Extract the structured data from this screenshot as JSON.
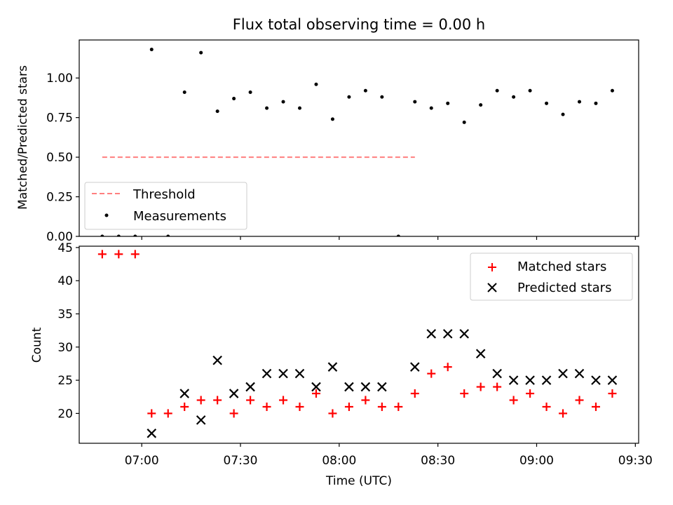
{
  "title": "Flux total observing time = 0.00 h",
  "colors": {
    "threshold": "#ff7f7f",
    "measurements": "#000000",
    "matched": "#ff0000",
    "predicted": "#000000"
  },
  "chart_data": [
    {
      "type": "scatter",
      "title": "Flux total observing time = 0.00 h",
      "ylabel": "Matched/Predicted stars",
      "xlabel": "",
      "ylim": [
        0,
        1.24
      ],
      "yticks": [
        0.0,
        0.25,
        0.5,
        0.75,
        1.0
      ],
      "ytick_labels": [
        "0.00",
        "0.25",
        "0.50",
        "0.75",
        "1.00"
      ],
      "legend_position": "lower-left",
      "series": [
        {
          "name": "Threshold",
          "style": "dashed-line",
          "x": [
            "06:48",
            "08:23"
          ],
          "y": [
            0.5,
            0.5
          ]
        },
        {
          "name": "Measurements",
          "style": "dot",
          "x": [
            "06:48",
            "06:53",
            "06:58",
            "07:03",
            "07:08",
            "07:13",
            "07:18",
            "07:23",
            "07:28",
            "07:33",
            "07:38",
            "07:43",
            "07:48",
            "07:53",
            "07:58",
            "08:03",
            "08:08",
            "08:13",
            "08:18",
            "08:23",
            "08:28",
            "08:33",
            "08:38",
            "08:43",
            "08:48",
            "08:53",
            "08:58",
            "09:03",
            "09:08",
            "09:13",
            "09:18",
            "09:23"
          ],
          "y": [
            0.0,
            0.0,
            0.0,
            1.18,
            0.0,
            0.91,
            1.16,
            0.79,
            0.87,
            0.91,
            0.81,
            0.85,
            0.81,
            0.96,
            0.74,
            0.88,
            0.92,
            0.88,
            0.0,
            0.85,
            0.81,
            0.84,
            0.72,
            0.83,
            0.92,
            0.88,
            0.92,
            0.84,
            0.77,
            0.85,
            0.84,
            0.92
          ]
        }
      ]
    },
    {
      "type": "scatter",
      "title": "",
      "ylabel": "Count",
      "xlabel": "Time (UTC)",
      "ylim": [
        15.5,
        45.2
      ],
      "yticks": [
        20,
        25,
        30,
        35,
        40,
        45
      ],
      "ytick_labels": [
        "20",
        "25",
        "30",
        "35",
        "40",
        "45"
      ],
      "xticks": [
        "07:00",
        "07:30",
        "08:00",
        "08:30",
        "09:00",
        "09:30"
      ],
      "xlim": [
        "06:41",
        "09:31"
      ],
      "legend_position": "upper-right",
      "series": [
        {
          "name": "Matched stars",
          "marker": "plus",
          "x": [
            "06:48",
            "06:53",
            "06:58",
            "07:03",
            "07:08",
            "07:13",
            "07:18",
            "07:23",
            "07:28",
            "07:33",
            "07:38",
            "07:43",
            "07:48",
            "07:53",
            "07:58",
            "08:03",
            "08:08",
            "08:13",
            "08:18",
            "08:23",
            "08:28",
            "08:33",
            "08:38",
            "08:43",
            "08:48",
            "08:53",
            "08:58",
            "09:03",
            "09:08",
            "09:13",
            "09:18",
            "09:23"
          ],
          "y": [
            44,
            44,
            44,
            20,
            20,
            21,
            22,
            22,
            20,
            22,
            21,
            22,
            21,
            23,
            20,
            21,
            22,
            21,
            21,
            23,
            26,
            27,
            23,
            24,
            24,
            22,
            23,
            21,
            20,
            22,
            21,
            23
          ]
        },
        {
          "name": "Predicted stars",
          "marker": "x",
          "x": [
            "07:03",
            "07:13",
            "07:18",
            "07:23",
            "07:28",
            "07:33",
            "07:38",
            "07:43",
            "07:48",
            "07:53",
            "07:58",
            "08:03",
            "08:08",
            "08:13",
            "08:23",
            "08:28",
            "08:33",
            "08:38",
            "08:43",
            "08:48",
            "08:53",
            "08:58",
            "09:03",
            "09:08",
            "09:13",
            "09:18",
            "09:23"
          ],
          "y": [
            17,
            23,
            19,
            28,
            23,
            24,
            26,
            26,
            26,
            24,
            27,
            24,
            24,
            24,
            27,
            32,
            32,
            32,
            29,
            26,
            25,
            25,
            25,
            26,
            26,
            25,
            25
          ]
        }
      ]
    }
  ]
}
